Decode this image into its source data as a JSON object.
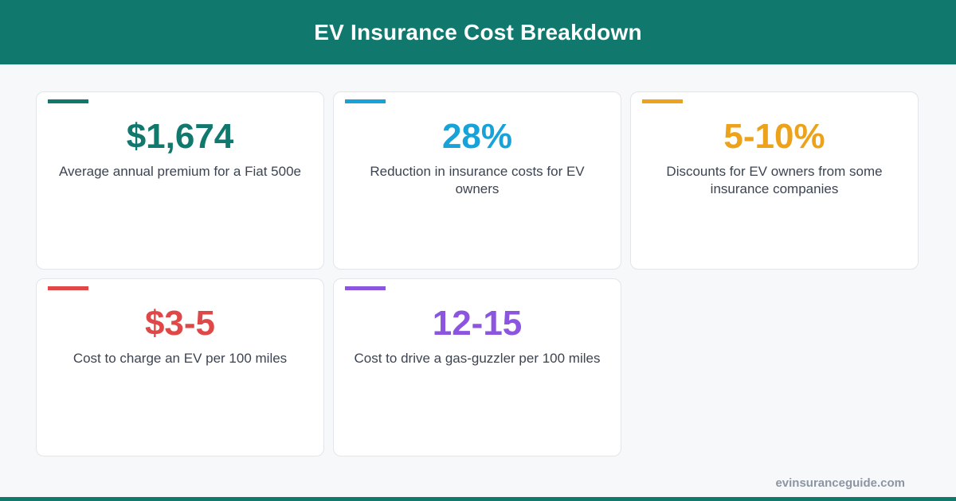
{
  "header": {
    "title": "EV Insurance Cost Breakdown"
  },
  "cards": [
    {
      "value": "$1,674",
      "description": "Average annual premium for a Fiat 500e",
      "color": "#11786e"
    },
    {
      "value": "28%",
      "description": "Reduction in insurance costs for EV owners",
      "color": "#16a3d9"
    },
    {
      "value": "5-10%",
      "description": "Discounts for EV owners from some insurance companies",
      "color": "#eca21a"
    },
    {
      "value": "$3-5",
      "description": "Cost to charge an EV per 100 miles",
      "color": "#e04848"
    },
    {
      "value": "12-15",
      "description": "Cost to drive a gas-guzzler per 100 miles",
      "color": "#8c55e0"
    }
  ],
  "footer": {
    "site": "evinsuranceguide.com"
  }
}
